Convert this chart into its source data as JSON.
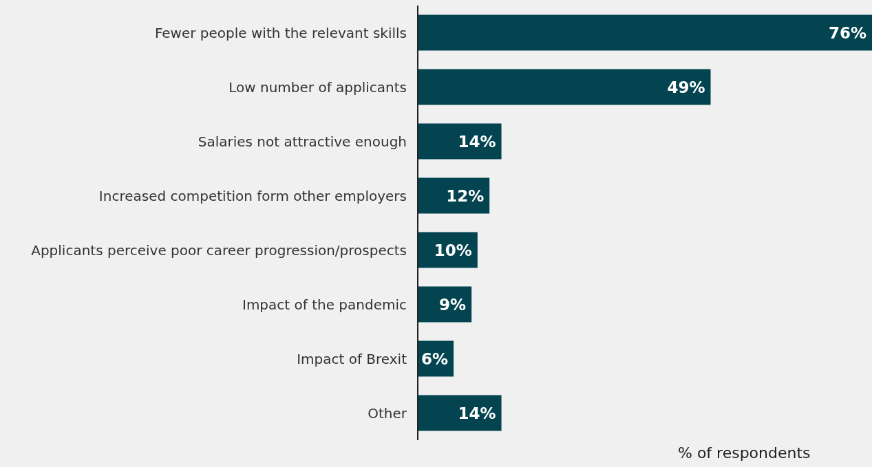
{
  "chart_data": {
    "type": "bar",
    "orientation": "horizontal",
    "xlabel": "% of respondents",
    "categories": [
      "Fewer people with the relevant skills",
      "Low number of applicants",
      "Salaries not attractive enough",
      "Increased competition form other employers",
      "Applicants perceive poor career progression/prospects",
      "Impact of the pandemic",
      "Impact of Brexit",
      "Other"
    ],
    "values": [
      76,
      49,
      14,
      12,
      10,
      9,
      6,
      14
    ],
    "value_labels": [
      "76%",
      "49%",
      "14%",
      "12%",
      "10%",
      "9%",
      "6%",
      "14%"
    ],
    "color": "#034450",
    "grid": false,
    "legend": false
  }
}
